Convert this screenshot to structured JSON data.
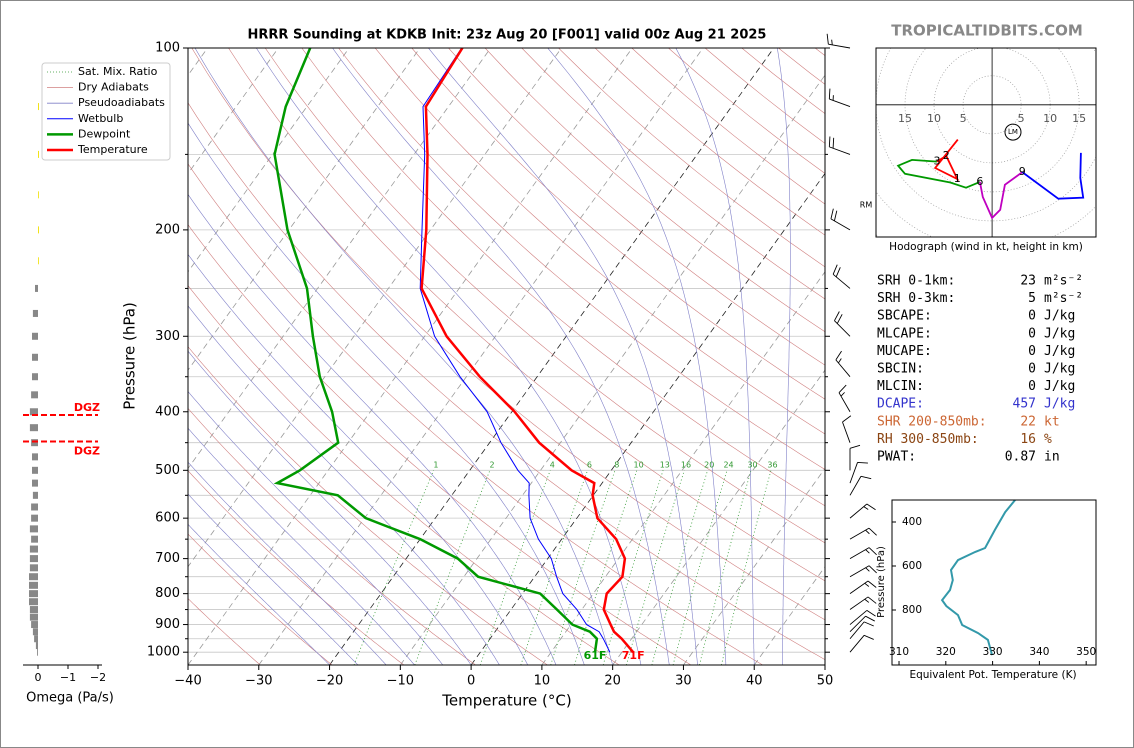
{
  "brand": "TROPICALTIDBITS.COM",
  "chart_data": [
    {
      "type": "skewt",
      "title": "HRRR Sounding at KDKB Init: 23z Aug 20 [F001] valid 00z Aug 21 2025",
      "x_label": "Temperature (°C)",
      "y_label": "Pressure (hPa)",
      "xlim": [
        -40,
        50
      ],
      "xticks": [
        {
          "value": -40,
          "label": "−40"
        },
        {
          "value": -30,
          "label": "−30"
        },
        {
          "value": -20,
          "label": "−20"
        },
        {
          "value": -10,
          "label": "−10"
        },
        0,
        10,
        20,
        30,
        40,
        50
      ],
      "ylim": [
        1050,
        100
      ],
      "log_y": true,
      "yticks": [
        100,
        200,
        300,
        400,
        500,
        600,
        700,
        800,
        900,
        1000
      ],
      "yminorticks": [
        150,
        250,
        350,
        450,
        550,
        650,
        750,
        850,
        950
      ],
      "grid": true,
      "legend": "upper left",
      "pressure": [
        1000,
        950,
        925,
        900,
        850,
        800,
        750,
        700,
        650,
        600,
        550,
        525,
        500,
        450,
        400,
        350,
        300,
        250,
        200,
        150,
        125,
        100
      ],
      "reference_lines": [
        {
          "name": "Sat. Mix. Ratio",
          "color": "#339933",
          "style": "dotted"
        },
        {
          "name": "Dry Adiabats",
          "color": "#d08080",
          "style": "solid"
        },
        {
          "name": "Pseudoadiabats",
          "color": "#8080c8",
          "style": "solid"
        }
      ],
      "series": [
        {
          "name": "Wetbulb",
          "color": "#0000ff",
          "width": 1,
          "values": [
            18.3,
            16.0,
            14.7,
            12.2,
            9.3,
            5.7,
            3.1,
            0.5,
            -3.3,
            -6.6,
            -9.1,
            -10.3,
            -13.2,
            -18.4,
            -23.5,
            -30.9,
            -38.6,
            -45.5,
            -51.2,
            -58.5,
            -63.6,
            -64.1
          ]
        },
        {
          "name": "Dewpoint",
          "color": "#009900",
          "width": 2.5,
          "surface_label": "61F",
          "values": [
            16.2,
            15.1,
            13.4,
            10.2,
            6.5,
            2.5,
            -8.0,
            -12.7,
            -20.0,
            -29.8,
            -36.1,
            -45.9,
            -44.0,
            -41.4,
            -45.4,
            -50.7,
            -55.8,
            -61.5,
            -70.2,
            -79.7,
            -83.0,
            -85.5
          ]
        },
        {
          "name": "Temperature",
          "color": "#ff0000",
          "width": 2.5,
          "surface_label": "71F",
          "values": [
            21.6,
            18.6,
            16.8,
            15.6,
            13.1,
            11.9,
            12.4,
            10.9,
            7.7,
            2.9,
            -0.1,
            -1.1,
            -5.6,
            -13.0,
            -19.6,
            -28.1,
            -36.9,
            -45.3,
            -50.6,
            -58.1,
            -63.2,
            -64.0
          ]
        }
      ],
      "mixing_ratios": [
        1,
        2,
        4,
        6,
        8,
        10,
        13,
        16,
        20,
        24,
        30,
        36
      ],
      "barbs": {
        "direction": [
          40,
          40,
          45,
          50,
          55,
          55,
          60,
          60,
          60,
          50,
          30,
          20,
          0,
          340,
          330,
          320,
          315,
          310,
          300,
          290,
          290,
          280
        ],
        "speed": [
          10,
          12,
          13,
          13,
          15,
          17,
          18,
          18,
          17,
          15,
          12,
          10,
          10,
          12,
          15,
          18,
          20,
          22,
          22,
          20,
          18,
          15
        ]
      },
      "storm_motion_label": "RM"
    },
    {
      "type": "omega",
      "x_label": "Omega (Pa/s)",
      "xlim": [
        0.5,
        -2
      ],
      "xticks": [
        0,
        {
          "value": -1,
          "label": "−1"
        },
        {
          "value": -2,
          "label": "−2"
        }
      ],
      "ylim": [
        1050,
        100
      ],
      "color": "#888888",
      "negative_color": "#f0e000",
      "pressure": [
        125,
        150,
        175,
        200,
        225,
        250,
        275,
        300,
        325,
        350,
        375,
        400,
        425,
        450,
        475,
        500,
        525,
        550,
        575,
        600,
        625,
        650,
        675,
        700,
        725,
        750,
        775,
        800,
        825,
        850,
        875,
        900,
        925,
        950,
        975,
        1000
      ],
      "values": [
        -0.03,
        -0.03,
        -0.02,
        -0.03,
        -0.02,
        0.1,
        0.17,
        0.2,
        0.2,
        0.2,
        0.23,
        0.27,
        0.27,
        0.23,
        0.2,
        0.2,
        0.2,
        0.17,
        0.23,
        0.23,
        0.27,
        0.23,
        0.27,
        0.27,
        0.27,
        0.3,
        0.3,
        0.3,
        0.3,
        0.27,
        0.27,
        0.23,
        0.17,
        0.13,
        0.07,
        0.03
      ],
      "dgz": {
        "label": "DGZ",
        "top": 405,
        "bottom": 448,
        "color": "#ff0000"
      }
    },
    {
      "type": "hodograph",
      "caption": "Hodograph (wind in kt, height in km)",
      "xlim": [
        -20,
        17.9
      ],
      "ylim": [
        -22.8,
        9.8
      ],
      "xticks": [
        {
          "value": -15,
          "label": "15"
        },
        {
          "value": -10,
          "label": "10"
        },
        {
          "value": -5,
          "label": "5"
        },
        5,
        10,
        15
      ],
      "series": [
        {
          "color": "#ff0000",
          "u": [
            -5.9,
            -9.8,
            -6.0,
            -7.9,
            -9.5
          ],
          "v": [
            -6.0,
            -10.9,
            -12.8,
            -8.8,
            -9.8
          ]
        },
        {
          "color": "#009900",
          "u": [
            -9.5,
            -13.8,
            -16.2,
            -15.0,
            -7.2,
            -4.5,
            -2.1
          ],
          "v": [
            -9.8,
            -9.5,
            -10.5,
            -11.9,
            -13.4,
            -14.3,
            -13.3
          ]
        },
        {
          "color": "#c000c0",
          "u": [
            -2.1,
            -1.6,
            0,
            1.4,
            2.2,
            5.2
          ],
          "v": [
            -13.3,
            -15.9,
            -19.5,
            -18.1,
            -13.8,
            -11.6
          ]
        },
        {
          "color": "#0000ff",
          "u": [
            5.2,
            11.4,
            15.7,
            15.2,
            15.3
          ],
          "v": [
            -11.6,
            -16.2,
            -16.0,
            -12.6,
            -8.3
          ]
        }
      ],
      "height_labels": {
        "values": [
          1,
          2,
          3,
          6,
          9
        ],
        "u": [
          -6.0,
          -7.9,
          -9.5,
          -2.1,
          5.2
        ],
        "v": [
          -12.8,
          -8.8,
          -9.8,
          -13.3,
          -11.6
        ]
      },
      "storm_motion": {
        "label": "LM",
        "u": 3.6,
        "v": -4.7
      }
    },
    {
      "type": "line",
      "x_label": "Equivalent Pot. Temperature (K)",
      "y_label": "Pressure (hPa)",
      "xlim": [
        308.5,
        352.1
      ],
      "xticks": [
        310,
        320,
        330,
        340,
        350
      ],
      "ylim": [
        1050,
        300
      ],
      "yticks": [
        400,
        600,
        800
      ],
      "color": "#3399aa",
      "pressure": [
        300,
        355,
        436,
        518,
        536,
        573,
        618,
        664,
        709,
        755,
        782,
        823,
        868,
        905,
        936,
        1005
      ],
      "values": [
        334.8,
        332.7,
        330.5,
        328.4,
        326.3,
        322.6,
        321.1,
        321.5,
        320.9,
        319.2,
        320.1,
        322.6,
        323.5,
        326.9,
        329.0,
        329.9
      ]
    }
  ],
  "indices": [
    {
      "label": "SRH 0-1km:",
      "value": 23,
      "unit": "m²s⁻²"
    },
    {
      "label": "SRH 0-3km:",
      "value": 5,
      "unit": "m²s⁻²"
    },
    {
      "label": "SBCAPE:",
      "value": 0,
      "unit": "J/kg"
    },
    {
      "label": "MLCAPE:",
      "value": 0,
      "unit": "J/kg"
    },
    {
      "label": "MUCAPE:",
      "value": 0,
      "unit": "J/kg"
    },
    {
      "label": "SBCIN:",
      "value": 0,
      "unit": "J/kg"
    },
    {
      "label": "MLCIN:",
      "value": 0,
      "unit": "J/kg"
    },
    {
      "label": "DCAPE:",
      "value": 457,
      "unit": "J/kg",
      "color": "#3333cc"
    },
    {
      "label": "SHR 200-850mb:",
      "value": 22,
      "unit": "kt",
      "color": "#cc6633"
    },
    {
      "label": "RH 300-850mb:",
      "value": 16,
      "unit": "%",
      "color": "#8b4513"
    },
    {
      "label": "PWAT:",
      "value": 0.87,
      "unit": "in"
    }
  ]
}
